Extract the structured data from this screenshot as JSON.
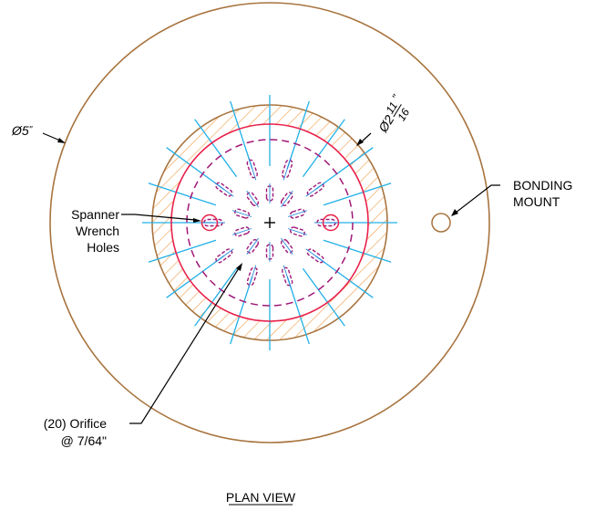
{
  "diagram": {
    "view_title": "PLAN VIEW",
    "outer_diameter": {
      "symbol": "Ø",
      "value": "5",
      "unit": "\""
    },
    "inner_diameter": {
      "symbol": "Ø",
      "whole": "2",
      "numerator": "11",
      "denominator": "16",
      "unit": "\""
    },
    "labels": {
      "spanner": [
        "Spanner",
        "Wrench",
        "Holes"
      ],
      "bonding": [
        "BONDING",
        "MOUNT"
      ],
      "orifice": [
        "(20) Orifice",
        "@ 7/64\""
      ]
    },
    "orifice_count": 20,
    "spoke_count": 20,
    "colors": {
      "outer_circle": "#a8743f",
      "hatch": "#f0a050",
      "spokes": "#22b0e8",
      "red_ring": "#e8204a",
      "dashed_ring": "#a01878",
      "slots": "#a01878",
      "slot_centerline": "#2a8ad8",
      "leaders": "#000000"
    }
  }
}
